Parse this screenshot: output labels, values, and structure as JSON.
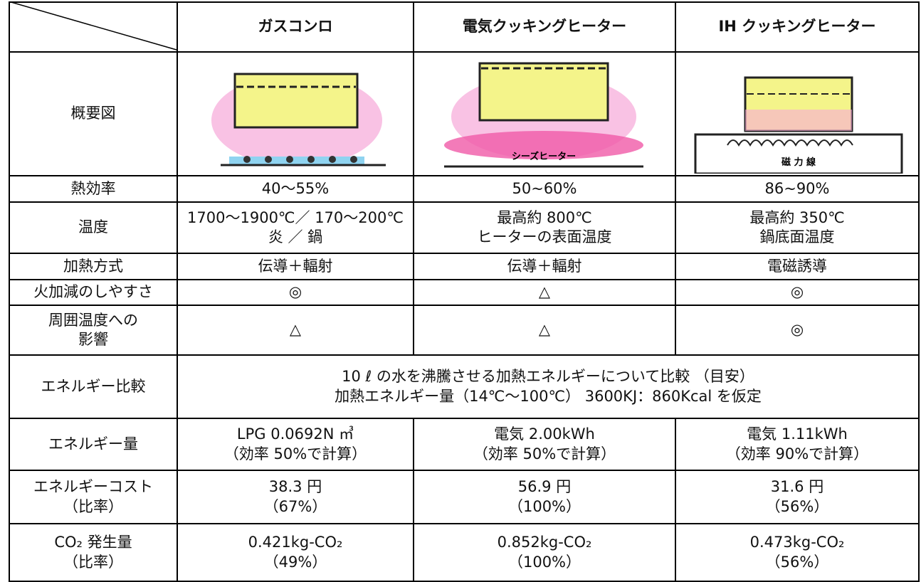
{
  "header": {
    "columns": [
      "ガスコンロ",
      "電気クッキングヒーター",
      "IH クッキングヒーター"
    ]
  },
  "diagram_row": {
    "label": "概要図",
    "labels": [
      "シーズヒーター",
      "磁 力 線"
    ]
  },
  "rows": [
    {
      "label": [
        "熱効率"
      ],
      "cells": [
        [
          "40～55%"
        ],
        [
          "50~60%"
        ],
        [
          "86~90%"
        ]
      ]
    },
    {
      "label": [
        "温度"
      ],
      "cells": [
        [
          "1700～1900℃／ 170～200℃",
          "炎 ／ 鍋"
        ],
        [
          "最高約 800℃",
          "ヒーターの表面温度"
        ],
        [
          "最高約 350℃",
          "鍋底面温度"
        ]
      ]
    },
    {
      "label": [
        "加熱方式"
      ],
      "cells": [
        [
          "伝導＋輻射"
        ],
        [
          "伝導＋輻射"
        ],
        [
          "電磁誘導"
        ]
      ]
    },
    {
      "label": [
        "火加減のしやすさ"
      ],
      "cells": [
        [
          "◎"
        ],
        [
          "△"
        ],
        [
          "◎"
        ]
      ]
    },
    {
      "label": [
        "周囲温度への",
        "影響"
      ],
      "cells": [
        [
          "△"
        ],
        [
          "△"
        ],
        [
          "◎"
        ]
      ]
    },
    {
      "label": [
        "エネルギー比較"
      ],
      "merged": [
        "10 ℓ の水を沸騰させる加熱エネルギーについて比較 （目安）",
        "加熱エネルギー量（14℃～100℃） 3600KJ：860Kcal を仮定"
      ]
    },
    {
      "label": [
        "エネルギー量"
      ],
      "cells": [
        [
          "LPG 0.0692N ㎥",
          "（効率 50%で計算）"
        ],
        [
          "電気 2.00kWh",
          "（効率 50%で計算）"
        ],
        [
          "電気 1.11kWh",
          "（効率 90%で計算）"
        ]
      ]
    },
    {
      "label": [
        "エネルギーコスト",
        "（比率）"
      ],
      "cells": [
        [
          "38.3 円",
          "（67%）"
        ],
        [
          "56.9 円",
          "（100%）"
        ],
        [
          "31.6 円",
          "（56%）"
        ]
      ]
    },
    {
      "label": [
        "CO₂ 発生量",
        "（比率）"
      ],
      "cells": [
        [
          "0.421kg-CO₂",
          "（49%）"
        ],
        [
          "0.852kg-CO₂",
          "（100%）"
        ],
        [
          "0.473kg-CO₂",
          "（56%）"
        ]
      ]
    }
  ]
}
